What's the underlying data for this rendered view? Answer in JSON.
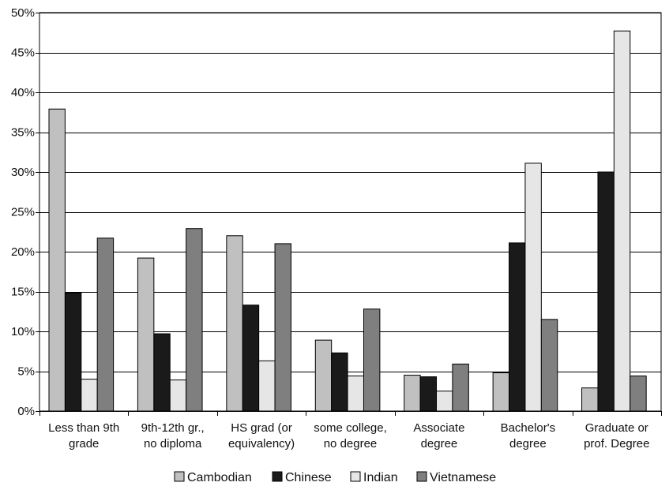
{
  "chart_data": {
    "type": "bar",
    "title": "",
    "xlabel": "",
    "ylabel": "",
    "ylim": [
      0,
      50
    ],
    "y_ticks": [
      "0%",
      "5%",
      "10%",
      "15%",
      "20%",
      "25%",
      "30%",
      "35%",
      "40%",
      "45%",
      "50%"
    ],
    "y_tick_values": [
      0,
      5,
      10,
      15,
      20,
      25,
      30,
      35,
      40,
      45,
      50
    ],
    "grid": "horizontal",
    "legend_position": "bottom",
    "categories": [
      [
        "Less than 9th",
        "grade"
      ],
      [
        "9th-12th gr.,",
        "no diploma"
      ],
      [
        "HS grad (or",
        "equivalency)"
      ],
      [
        "some college,",
        "no degree"
      ],
      [
        "Associate",
        "degree"
      ],
      [
        "Bachelor's",
        "degree"
      ],
      [
        "Graduate or",
        "prof. Degree"
      ]
    ],
    "series": [
      {
        "name": "Cambodian",
        "color": "#c0c0c0",
        "values": [
          37.9,
          19.2,
          22.0,
          8.9,
          4.5,
          4.8,
          2.9
        ]
      },
      {
        "name": "Chinese",
        "color": "#1a1a1a",
        "values": [
          14.8,
          9.7,
          13.3,
          7.3,
          4.3,
          21.1,
          30.0
        ]
      },
      {
        "name": "Indian",
        "color": "#e6e6e6",
        "values": [
          4.0,
          3.9,
          6.3,
          4.4,
          2.5,
          31.1,
          47.7
        ]
      },
      {
        "name": "Vietnamese",
        "color": "#7f7f7f",
        "values": [
          21.7,
          22.9,
          21.0,
          12.8,
          5.9,
          11.5,
          4.4
        ]
      }
    ]
  }
}
